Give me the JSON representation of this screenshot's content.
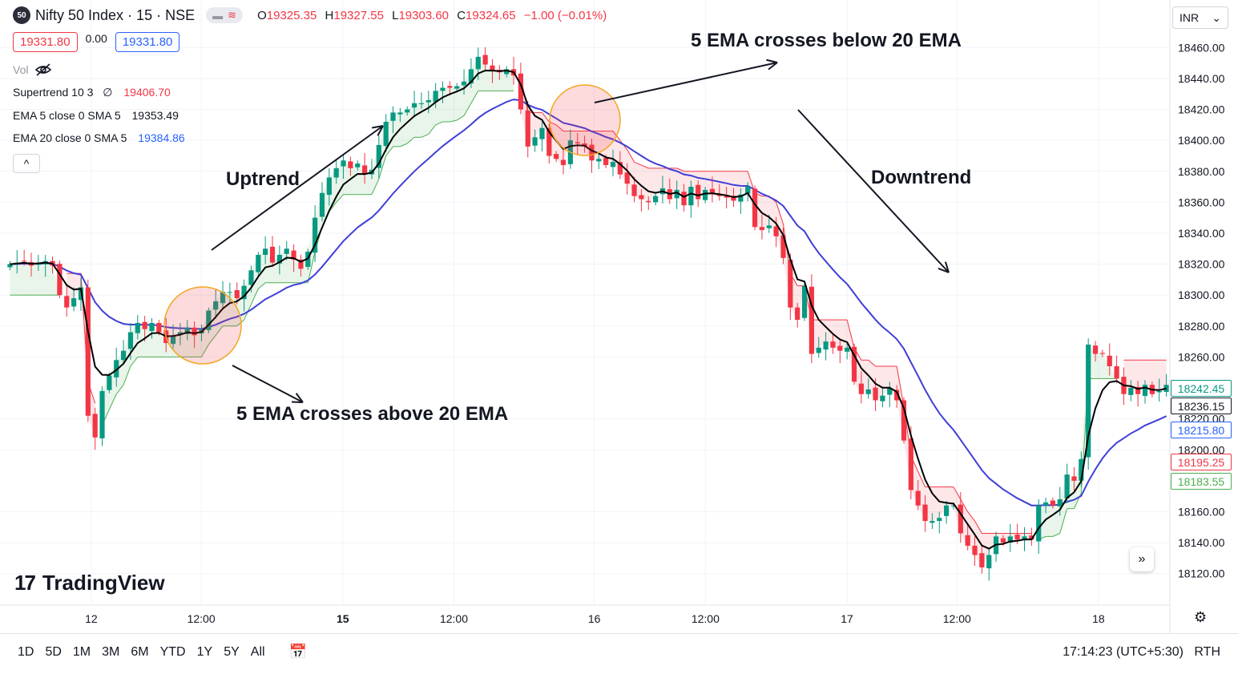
{
  "header": {
    "badge": "50",
    "title": "Nifty 50 Index · 15 · NSE",
    "pill_left": "▬",
    "pill_right": "≋",
    "ohlc": [
      {
        "k": "O",
        "v": "19325.35"
      },
      {
        "k": "H",
        "v": "19327.55"
      },
      {
        "k": "L",
        "v": "19303.60"
      },
      {
        "k": "C",
        "v": "19324.65"
      },
      {
        "k": "",
        "v": "−1.00 (−0.01%)"
      }
    ],
    "sell_price": "19331.80",
    "spread": "0.00",
    "buy_price": "19331.80",
    "vol_label": "Vol",
    "indicators": [
      {
        "name": "Supertrend 10 3",
        "extra": "∅",
        "value": "19406.70",
        "color": "#f23645"
      },
      {
        "name": "EMA 5 close 0 SMA 5",
        "extra": "",
        "value": "19353.49",
        "color": "#131722"
      },
      {
        "name": "EMA 20 close 0 SMA 5",
        "extra": "",
        "value": "19384.86",
        "color": "#2962ff"
      }
    ],
    "collapse_label": "^"
  },
  "currency": {
    "label": "INR",
    "chevron": "chevron-down-icon"
  },
  "annotations": {
    "uptrend": "Uptrend",
    "downtrend": "Downtrend",
    "cross_above": "5 EMA crosses above 20 EMA",
    "cross_below": "5 EMA crosses below 20 EMA"
  },
  "brand": {
    "logo_mark": "17",
    "name": "TradingView"
  },
  "bottom_bar": {
    "timeframes": [
      "1D",
      "5D",
      "1M",
      "3M",
      "6M",
      "YTD",
      "1Y",
      "5Y",
      "All"
    ],
    "clock": "17:14:23 (UTC+5:30)",
    "session": "RTH"
  },
  "price_labels": [
    {
      "value": "18242.45",
      "color": "#089981",
      "text_color": "#089981",
      "bg": "#ffffff",
      "border": "#089981"
    },
    {
      "value": "18236.15",
      "color": "#131722",
      "text_color": "#131722",
      "bg": "#ffffff",
      "border": "#131722"
    },
    {
      "value": "18215.80",
      "color": "#2962ff",
      "text_color": "#2962ff",
      "bg": "#ffffff",
      "border": "#2962ff"
    },
    {
      "value": "18195.25",
      "color": "#f23645",
      "text_color": "#f23645",
      "bg": "#ffffff",
      "border": "#f23645"
    },
    {
      "value": "18183.55",
      "color": "#4caf50",
      "text_color": "#4caf50",
      "bg": "#ffffff",
      "border": "#4caf50"
    }
  ],
  "chart_data": {
    "type": "candlestick",
    "ylim": [
      18110,
      18470
    ],
    "y_ticks": [
      "18460.00",
      "18440.00",
      "18420.00",
      "18400.00",
      "18380.00",
      "18360.00",
      "18340.00",
      "18320.00",
      "18300.00",
      "18280.00",
      "18260.00",
      "18220.00",
      "18200.00",
      "18160.00",
      "18140.00",
      "18120.00"
    ],
    "x_ticks": [
      {
        "label": "12",
        "bold": false,
        "pos": 0.078
      },
      {
        "label": "12:00",
        "bold": false,
        "pos": 0.172
      },
      {
        "label": "15",
        "bold": true,
        "pos": 0.293
      },
      {
        "label": "12:00",
        "bold": false,
        "pos": 0.388
      },
      {
        "label": "16",
        "bold": false,
        "pos": 0.508
      },
      {
        "label": "12:00",
        "bold": false,
        "pos": 0.603
      },
      {
        "label": "17",
        "bold": false,
        "pos": 0.724
      },
      {
        "label": "12:00",
        "bold": false,
        "pos": 0.818
      },
      {
        "label": "18",
        "bold": false,
        "pos": 0.939
      }
    ],
    "colors": {
      "up": "#089981",
      "down": "#f23645",
      "ema5": "#000000",
      "ema20": "#3f3fd8",
      "st_up": "#4caf50",
      "st_down": "#f23645"
    },
    "closes": [
      18320,
      18321,
      18322,
      18319,
      18321,
      18322,
      18319,
      18300,
      18292,
      18298,
      18305,
      18222,
      18208,
      18238,
      18248,
      18258,
      18264,
      18276,
      18282,
      18278,
      18282,
      18276,
      18269,
      18274,
      18276,
      18279,
      18274,
      18278,
      18290,
      18296,
      18302,
      18302,
      18298,
      18306,
      18316,
      18326,
      18330,
      18321,
      18326,
      18330,
      18323,
      18317,
      18328,
      18350,
      18366,
      18376,
      18382,
      18387,
      18382,
      18385,
      18378,
      18381,
      18397,
      18412,
      18418,
      18418,
      18420,
      18424,
      18424,
      18426,
      18432,
      18434,
      18434,
      18435,
      18438,
      18446,
      18454,
      18449,
      18445,
      18444,
      18446,
      18442,
      18420,
      18396,
      18402,
      18408,
      18390,
      18388,
      18384,
      18400,
      18398,
      18396,
      18387,
      18388,
      18384,
      18386,
      18378,
      18372,
      18364,
      18362,
      18360,
      18364,
      18369,
      18362,
      18368,
      18358,
      18370,
      18362,
      18368,
      18366,
      18364,
      18363,
      18361,
      18365,
      18370,
      18344,
      18342,
      18345,
      18338,
      18324,
      18292,
      18284,
      18306,
      18262,
      18266,
      18270,
      18266,
      18264,
      18266,
      18244,
      18236,
      18239,
      18232,
      18235,
      18240,
      18232,
      18206,
      18174,
      18164,
      18154,
      18154,
      18156,
      18164,
      18164,
      18146,
      18138,
      18132,
      18124,
      18132,
      18144,
      18140,
      18144,
      18142,
      18144,
      18142,
      18164,
      18166,
      18164,
      18168,
      18184,
      18180,
      18194,
      18268,
      18262,
      18262,
      18254,
      18246,
      18236,
      18240,
      18236,
      18242,
      18236,
      18238,
      18242
    ]
  }
}
